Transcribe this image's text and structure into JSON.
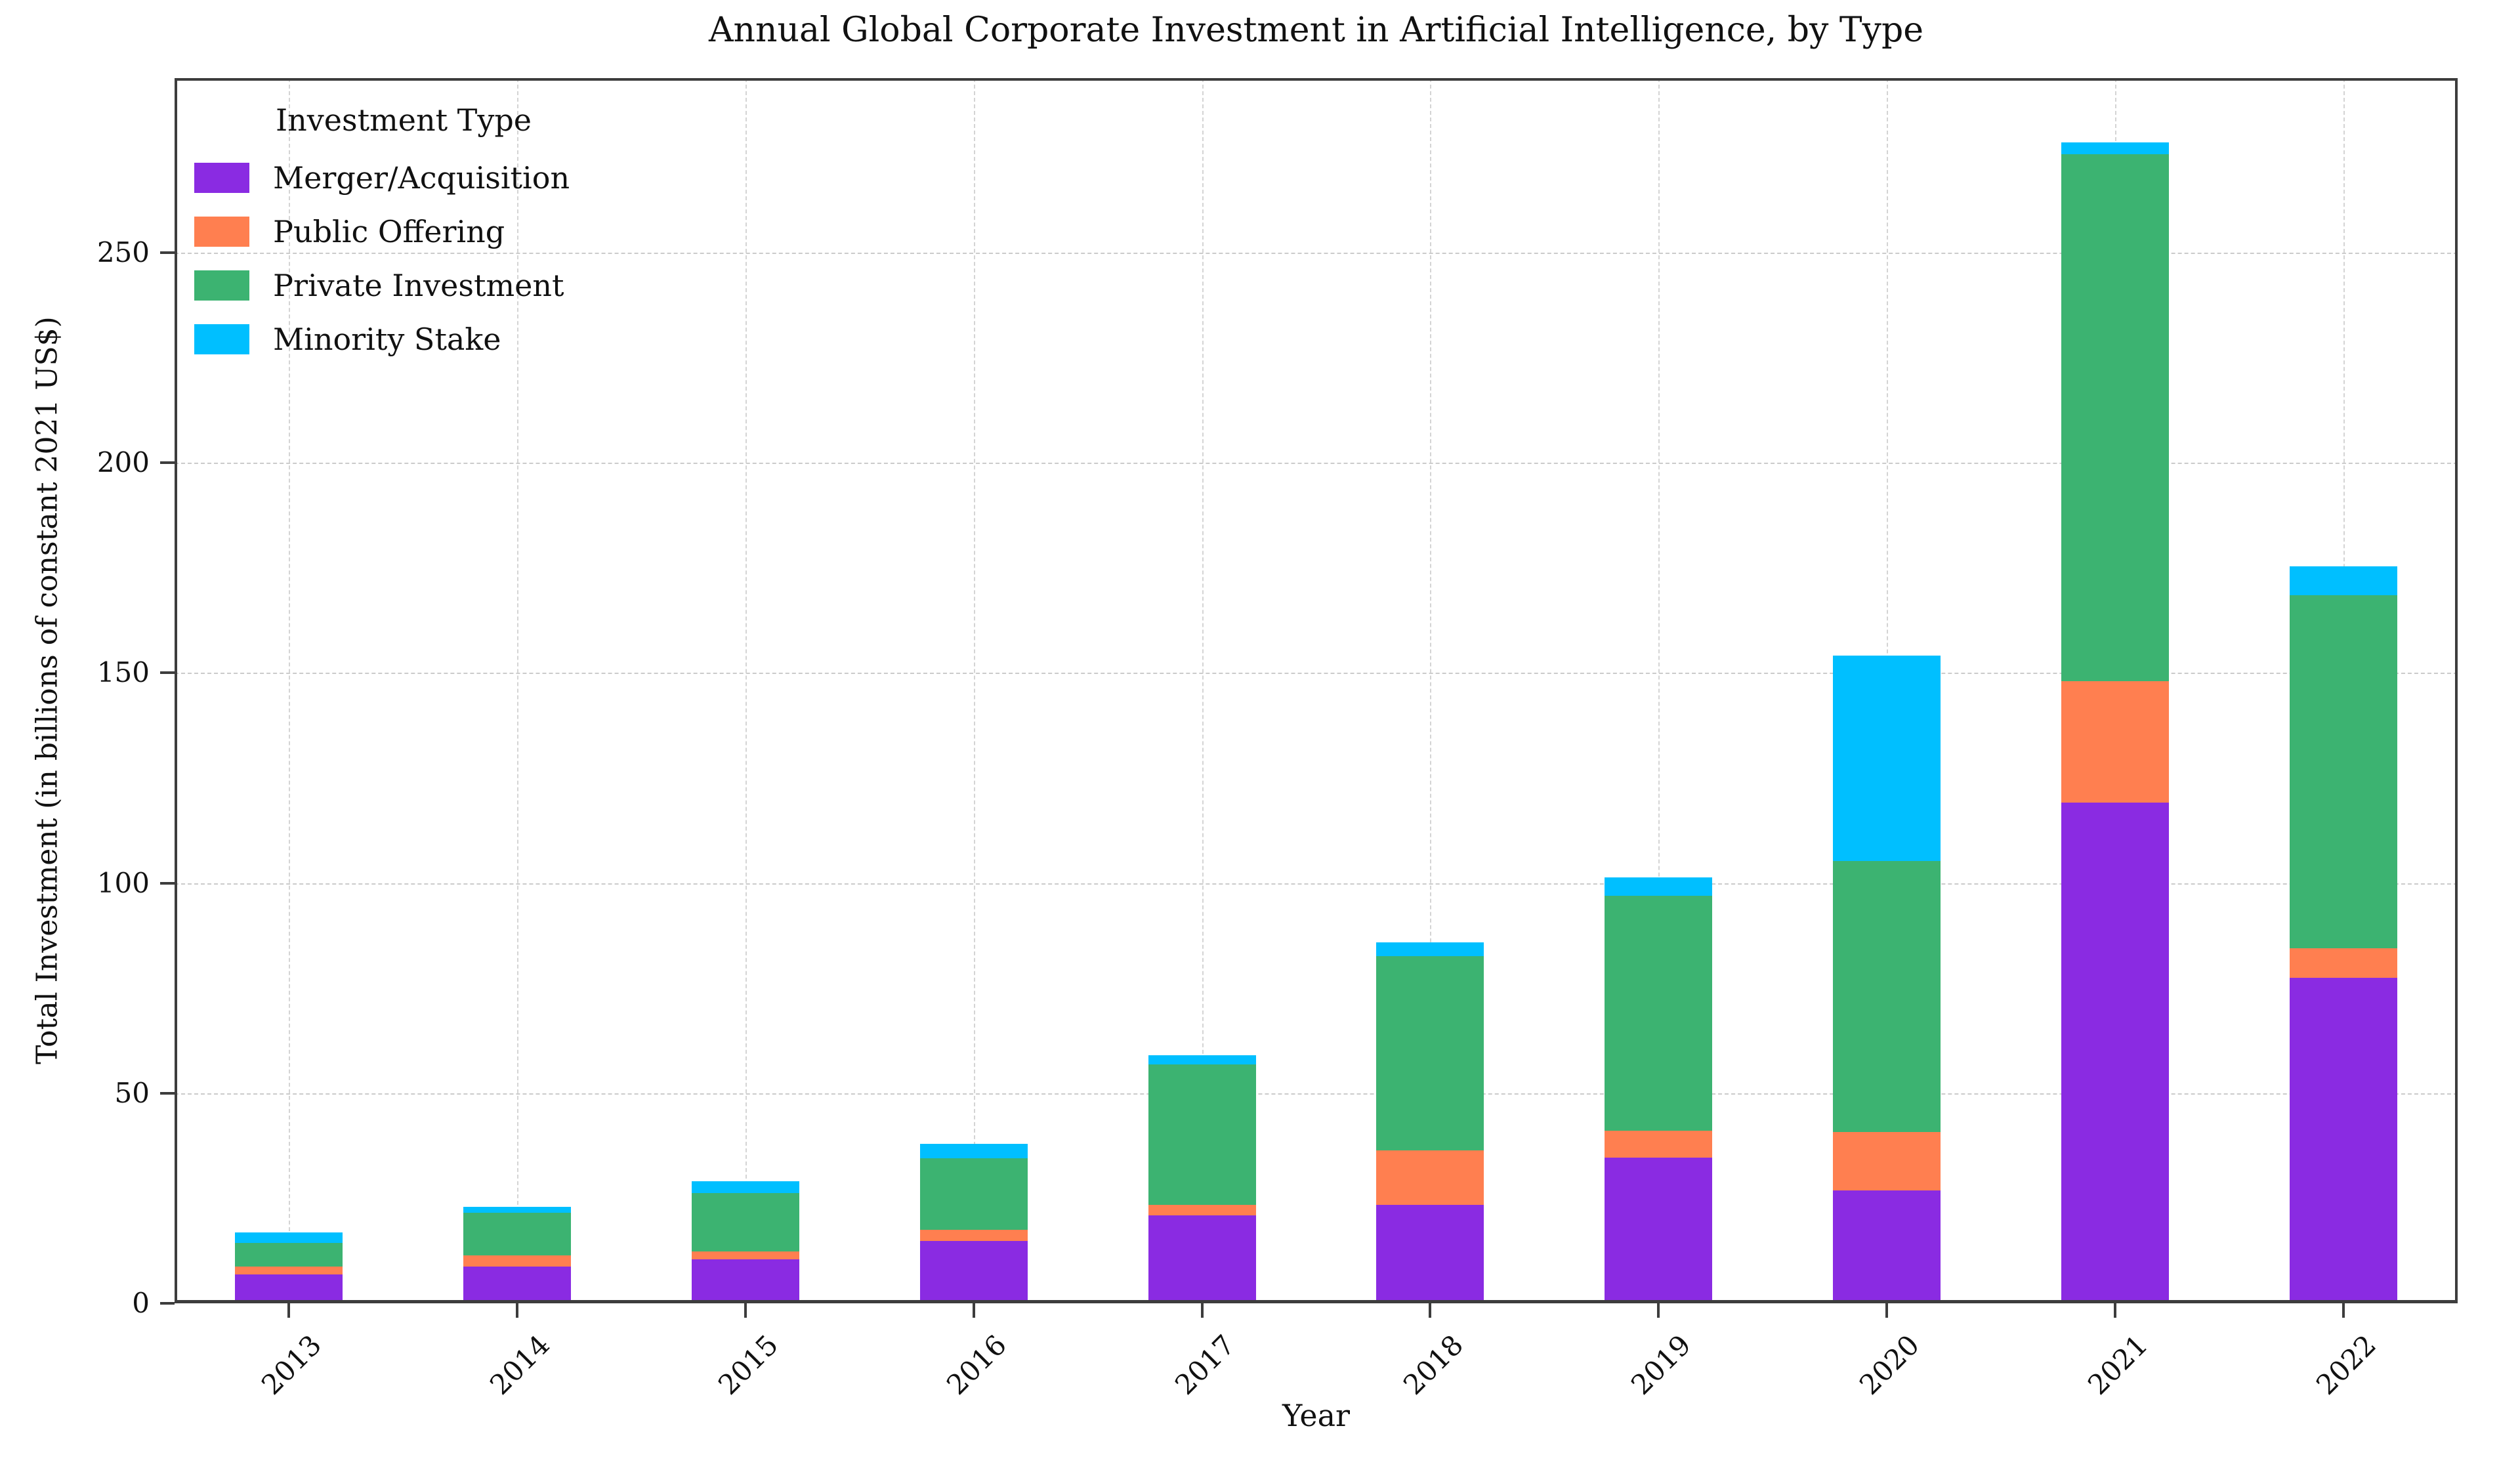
{
  "figure": {
    "title": "Annual Global Corporate Investment in Artificial Intelligence, by Type"
  },
  "legend": {
    "title": "Investment Type",
    "items": [
      {
        "label": "Merger/Acquisition",
        "color": "#8A2BE2"
      },
      {
        "label": "Public Offering",
        "color": "#FF7F50"
      },
      {
        "label": "Private Investment",
        "color": "#3CB371"
      },
      {
        "label": "Minority Stake",
        "color": "#00BFFF"
      }
    ]
  },
  "colors": {
    "background": "#ffffff",
    "text": "#111111",
    "spine": "#3d3d3d",
    "grid": "#cccccc",
    "merger_acquisition": "#8A2BE2",
    "public_offering": "#FF7F50",
    "private_investment": "#3CB371",
    "minority_stake": "#00BFFF"
  },
  "chart_data": {
    "type": "bar",
    "stacked": true,
    "title": "Annual Global Corporate Investment in Artificial Intelligence, by Type",
    "xlabel": "Year",
    "ylabel": "Total Investment (in billions of constant 2021 US$)",
    "categories": [
      "2013",
      "2014",
      "2015",
      "2016",
      "2017",
      "2018",
      "2019",
      "2020",
      "2021",
      "2022"
    ],
    "series": [
      {
        "name": "Merger/Acquisition",
        "color": "#8A2BE2",
        "values": [
          6.9,
          8.7,
          10.4,
          14.9,
          20.9,
          23.5,
          34.7,
          26.8,
          119.2,
          77.5
        ]
      },
      {
        "name": "Public Offering",
        "color": "#FF7F50",
        "values": [
          1.8,
          2.7,
          1.9,
          2.6,
          2.6,
          12.9,
          6.3,
          13.9,
          28.8,
          7.0
        ]
      },
      {
        "name": "Private Investment",
        "color": "#3CB371",
        "values": [
          5.7,
          10.1,
          13.9,
          17.0,
          33.4,
          46.2,
          55.9,
          64.6,
          125.4,
          83.9
        ]
      },
      {
        "name": "Minority Stake",
        "color": "#00BFFF",
        "values": [
          2.5,
          1.5,
          2.9,
          3.4,
          2.1,
          3.2,
          4.5,
          48.8,
          2.8,
          6.9
        ]
      }
    ],
    "totals": [
      16.9,
      23.0,
      29.1,
      37.9,
      59.0,
      85.8,
      101.4,
      154.1,
      276.2,
      175.3
    ],
    "y_ticks": [
      0,
      50,
      100,
      150,
      200,
      250
    ],
    "ylim": [
      0,
      291.5
    ],
    "grid": true,
    "grid_style": "dashed",
    "legend_position": "upper left",
    "x_tick_rotation": 45
  }
}
